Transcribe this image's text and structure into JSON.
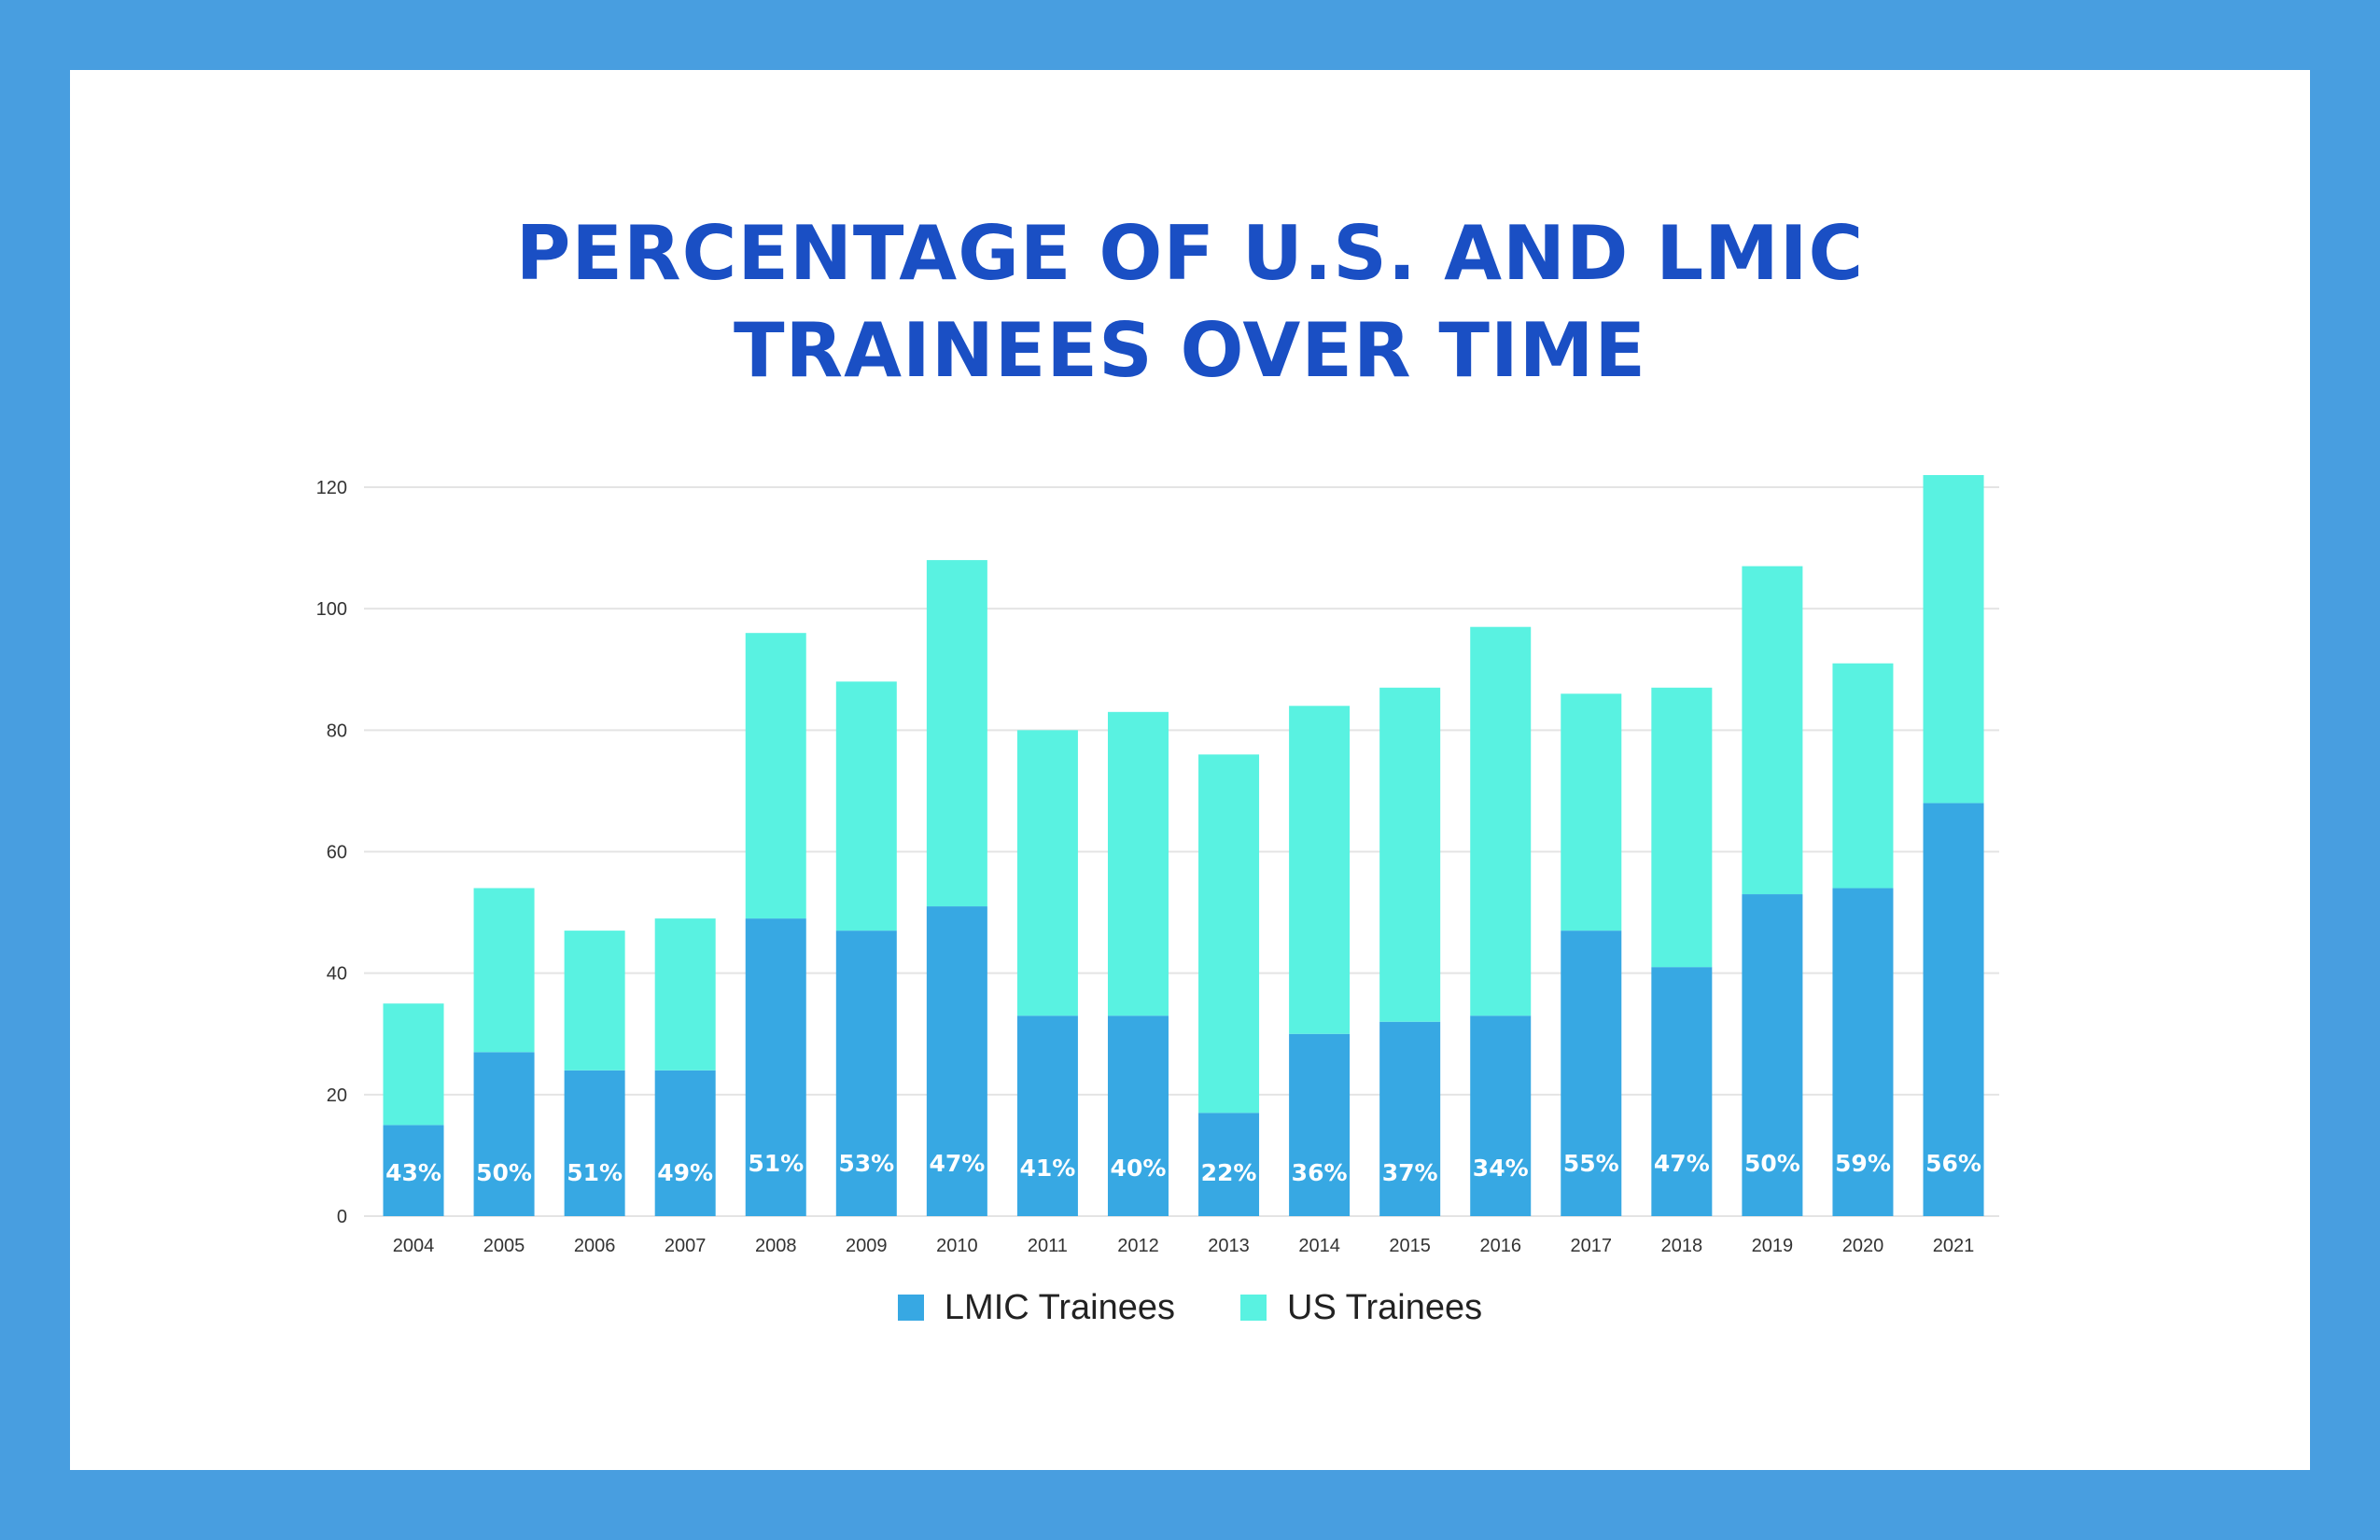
{
  "colors": {
    "frame": "#489ee0",
    "card": "#ffffff",
    "title": "#1a4fc4",
    "lmic": "#37a8e3",
    "us": "#59f2e1",
    "grid": "#e4e4e4"
  },
  "title_lines": [
    "PERCENTAGE OF U.S. AND LMIC",
    "TRAINEES OVER TIME"
  ],
  "chart_data": {
    "type": "bar",
    "stacked": true,
    "title": "PERCENTAGE OF U.S. AND LMIC TRAINEES OVER TIME",
    "xlabel": "",
    "ylabel": "",
    "ylim": [
      0,
      120
    ],
    "yticks": [
      0,
      20,
      40,
      60,
      80,
      100,
      120
    ],
    "grid": true,
    "legend_position": "bottom",
    "categories": [
      "2004",
      "2005",
      "2006",
      "2007",
      "2008",
      "2009",
      "2010",
      "2011",
      "2012",
      "2013",
      "2014",
      "2015",
      "2016",
      "2017",
      "2018",
      "2019",
      "2020",
      "2021"
    ],
    "series": [
      {
        "name": "LMIC Trainees",
        "color": "#37a8e3",
        "values": [
          15,
          27,
          24,
          24,
          49,
          47,
          51,
          33,
          33,
          17,
          30,
          32,
          33,
          47,
          41,
          53,
          54,
          68
        ],
        "labels": [
          "43%",
          "50%",
          "51%",
          "49%",
          "51%",
          "53%",
          "47%",
          "41%",
          "40%",
          "22%",
          "36%",
          "37%",
          "34%",
          "55%",
          "47%",
          "50%",
          "59%",
          "56%"
        ]
      },
      {
        "name": "US Trainees",
        "color": "#59f2e1",
        "values": [
          20,
          27,
          23,
          25,
          47,
          41,
          57,
          47,
          50,
          59,
          54,
          55,
          64,
          39,
          46,
          54,
          37,
          54
        ]
      }
    ]
  }
}
